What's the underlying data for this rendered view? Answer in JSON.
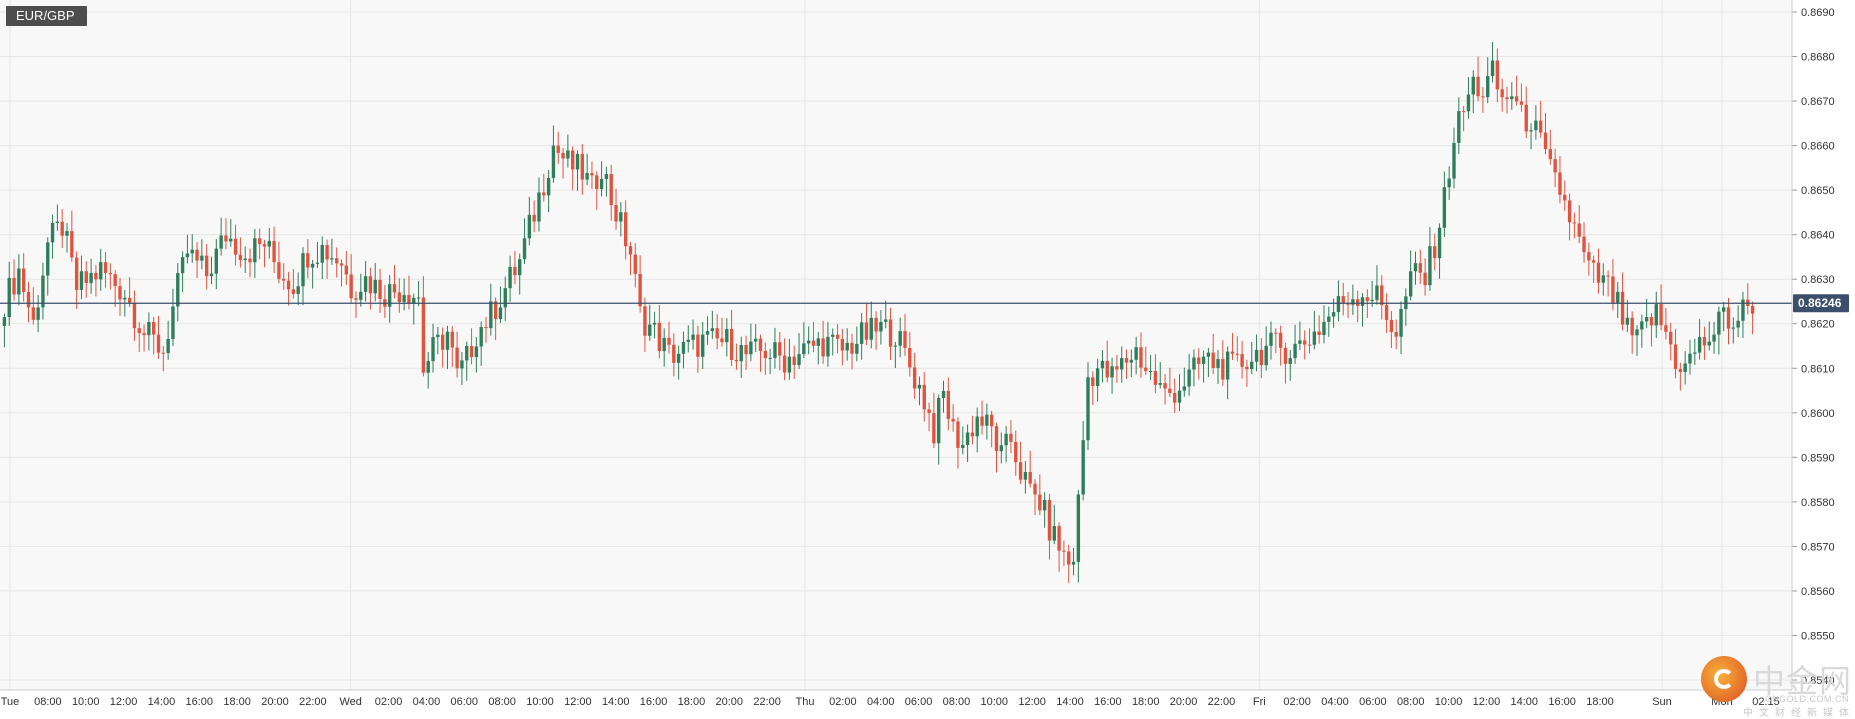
{
  "symbol": "EUR/GBP",
  "current_price_label": "0.86246",
  "colors": {
    "up": "#2e7d5b",
    "down": "#e0543f",
    "price_line": "#3b4f6b",
    "grid": "#e6e6e6",
    "plot_bg": "#f8f8f8",
    "axis_text": "#333333",
    "badge_bg": "#4d4d4d",
    "price_tag_bg": "#3b4f6b"
  },
  "watermark": {
    "brand": "中金网",
    "domain": "CNGOLD.COM.CN",
    "tagline": "中文财经新媒体"
  },
  "chart_data": {
    "type": "candlestick",
    "title": "EUR/GBP",
    "timeframe_note": "",
    "current_price": 0.86246,
    "ylim": [
      0.854,
      0.869
    ],
    "y_ticks": [
      "0.8690",
      "0.8680",
      "0.8670",
      "0.8660",
      "0.8650",
      "0.8640",
      "0.8630",
      "0.8620",
      "0.8610",
      "0.8600",
      "0.8590",
      "0.8580",
      "0.8570",
      "0.8560",
      "0.8550",
      "0.8540"
    ],
    "x_ticks": [
      "Tue",
      "08:00",
      "10:00",
      "12:00",
      "14:00",
      "16:00",
      "18:00",
      "20:00",
      "22:00",
      "Wed",
      "02:00",
      "04:00",
      "06:00",
      "08:00",
      "10:00",
      "12:00",
      "14:00",
      "16:00",
      "18:00",
      "20:00",
      "22:00",
      "Thu",
      "02:00",
      "04:00",
      "06:00",
      "08:00",
      "10:00",
      "12:00",
      "14:00",
      "16:00",
      "18:00",
      "20:00",
      "22:00",
      "Fri",
      "02:00",
      "04:00",
      "06:00",
      "08:00",
      "10:00",
      "12:00",
      "14:00",
      "16:00",
      "18:00",
      "Sun",
      "Mon",
      "02:15"
    ],
    "close_path": [
      [
        0,
        0.8625
      ],
      [
        3,
        0.8632
      ],
      [
        6,
        0.862
      ],
      [
        9,
        0.8638
      ],
      [
        12,
        0.8642
      ],
      [
        15,
        0.8628
      ],
      [
        20,
        0.8632
      ],
      [
        25,
        0.8627
      ],
      [
        29,
        0.8618
      ],
      [
        33,
        0.8614
      ],
      [
        36,
        0.8628
      ],
      [
        38,
        0.8636
      ],
      [
        42,
        0.8631
      ],
      [
        46,
        0.864
      ],
      [
        50,
        0.8636
      ],
      [
        54,
        0.8638
      ],
      [
        57,
        0.8632
      ],
      [
        60,
        0.8629
      ],
      [
        63,
        0.8636
      ],
      [
        66,
        0.8637
      ],
      [
        70,
        0.8634
      ],
      [
        72,
        0.8628
      ],
      [
        75,
        0.863
      ],
      [
        79,
        0.8627
      ],
      [
        83,
        0.8628
      ],
      [
        86,
        0.8626
      ],
      [
        87,
        0.861
      ],
      [
        89,
        0.8614
      ],
      [
        92,
        0.8618
      ],
      [
        94,
        0.8608
      ],
      [
        96,
        0.8612
      ],
      [
        98,
        0.8618
      ],
      [
        101,
        0.8622
      ],
      [
        104,
        0.8628
      ],
      [
        107,
        0.8634
      ],
      [
        110,
        0.8645
      ],
      [
        112,
        0.8652
      ],
      [
        114,
        0.866
      ],
      [
        117,
        0.8656
      ],
      [
        120,
        0.8654
      ],
      [
        122,
        0.865
      ],
      [
        124,
        0.8656
      ],
      [
        126,
        0.8648
      ],
      [
        128,
        0.8642
      ],
      [
        130,
        0.8636
      ],
      [
        132,
        0.8622
      ],
      [
        135,
        0.8618
      ],
      [
        138,
        0.8613
      ],
      [
        141,
        0.8614
      ],
      [
        145,
        0.8616
      ],
      [
        150,
        0.8616
      ],
      [
        154,
        0.8613
      ],
      [
        158,
        0.8614
      ],
      [
        162,
        0.8612
      ],
      [
        166,
        0.8614
      ],
      [
        170,
        0.8616
      ],
      [
        174,
        0.8614
      ],
      [
        178,
        0.8617
      ],
      [
        182,
        0.8619
      ],
      [
        185,
        0.8618
      ],
      [
        187,
        0.8613
      ],
      [
        189,
        0.8608
      ],
      [
        191,
        0.8603
      ],
      [
        193,
        0.8596
      ],
      [
        195,
        0.8604
      ],
      [
        197,
        0.8596
      ],
      [
        199,
        0.8593
      ],
      [
        202,
        0.8599
      ],
      [
        205,
        0.8596
      ],
      [
        207,
        0.859
      ],
      [
        209,
        0.8594
      ],
      [
        211,
        0.8587
      ],
      [
        213,
        0.8582
      ],
      [
        215,
        0.858
      ],
      [
        217,
        0.8574
      ],
      [
        219,
        0.857
      ],
      [
        221,
        0.8566
      ],
      [
        222,
        0.8568
      ],
      [
        223,
        0.858
      ],
      [
        225,
        0.8608
      ],
      [
        227,
        0.861
      ],
      [
        230,
        0.8608
      ],
      [
        233,
        0.8612
      ],
      [
        235,
        0.8614
      ],
      [
        237,
        0.861
      ],
      [
        239,
        0.8607
      ],
      [
        241,
        0.8604
      ],
      [
        243,
        0.8605
      ],
      [
        246,
        0.8608
      ],
      [
        249,
        0.8612
      ],
      [
        252,
        0.8611
      ],
      [
        255,
        0.861
      ],
      [
        258,
        0.8612
      ],
      [
        261,
        0.8614
      ],
      [
        264,
        0.8615
      ],
      [
        267,
        0.8614
      ],
      [
        270,
        0.8616
      ],
      [
        273,
        0.8619
      ],
      [
        276,
        0.8623
      ],
      [
        279,
        0.8626
      ],
      [
        282,
        0.8627
      ],
      [
        285,
        0.8626
      ],
      [
        287,
        0.8622
      ],
      [
        289,
        0.8618
      ],
      [
        291,
        0.8626
      ],
      [
        293,
        0.8632
      ],
      [
        295,
        0.863
      ],
      [
        297,
        0.8638
      ],
      [
        299,
        0.8648
      ],
      [
        301,
        0.8662
      ],
      [
        303,
        0.8668
      ],
      [
        305,
        0.8674
      ],
      [
        307,
        0.8672
      ],
      [
        309,
        0.8676
      ],
      [
        311,
        0.867
      ],
      [
        313,
        0.8672
      ],
      [
        315,
        0.8666
      ],
      [
        317,
        0.8666
      ],
      [
        319,
        0.866
      ],
      [
        321,
        0.8654
      ],
      [
        323,
        0.865
      ],
      [
        325,
        0.8644
      ],
      [
        327,
        0.8638
      ],
      [
        329,
        0.8632
      ],
      [
        331,
        0.863
      ],
      [
        333,
        0.8628
      ],
      [
        335,
        0.8624
      ],
      [
        337,
        0.8618
      ],
      [
        339,
        0.8616
      ],
      [
        341,
        0.862
      ],
      [
        343,
        0.8622
      ],
      [
        345,
        0.8618
      ],
      [
        347,
        0.8612
      ],
      [
        349,
        0.861
      ],
      [
        351,
        0.8614
      ],
      [
        353,
        0.8616
      ],
      [
        355,
        0.8618
      ],
      [
        357,
        0.8622
      ],
      [
        359,
        0.862
      ],
      [
        361,
        0.8623
      ],
      [
        363,
        0.8625
      ]
    ],
    "n_candles": 364
  }
}
